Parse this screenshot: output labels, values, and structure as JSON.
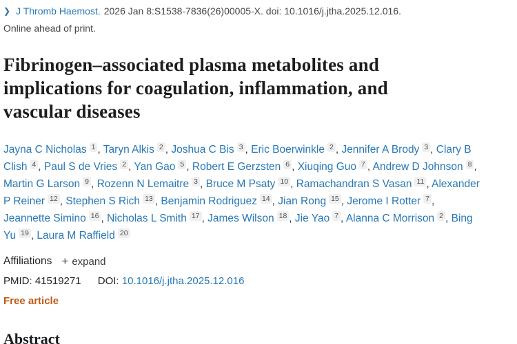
{
  "header": {
    "chevron_icon": "❯",
    "journal_link": "J Thromb Haemost.",
    "citation": "2026 Jan 8:S1538-7836(26)00005-X. doi: 10.1016/j.jtha.2025.12.016.",
    "online_ahead": "Online ahead of print."
  },
  "article": {
    "title": "Fibrinogen–associated plasma metabolites and implications for coagulation, inflammation, and vascular diseases"
  },
  "authors": [
    {
      "name": "Jayna C Nicholas",
      "sup": "1"
    },
    {
      "name": "Taryn Alkis",
      "sup": "2"
    },
    {
      "name": "Joshua C Bis",
      "sup": "3"
    },
    {
      "name": "Eric Boerwinkle",
      "sup": "2"
    },
    {
      "name": "Jennifer A Brody",
      "sup": "3"
    },
    {
      "name": "Clary B Clish",
      "sup": "4"
    },
    {
      "name": "Paul S de Vries",
      "sup": "2"
    },
    {
      "name": "Yan Gao",
      "sup": "5"
    },
    {
      "name": "Robert E Gerzsten",
      "sup": "6"
    },
    {
      "name": "Xiuqing Guo",
      "sup": "7"
    },
    {
      "name": "Andrew D Johnson",
      "sup": "8"
    },
    {
      "name": "Martin G Larson",
      "sup": "9"
    },
    {
      "name": "Rozenn N Lemaitre",
      "sup": "3"
    },
    {
      "name": "Bruce M Psaty",
      "sup": "10"
    },
    {
      "name": "Ramachandran S Vasan",
      "sup": "11"
    },
    {
      "name": "Alexander P Reiner",
      "sup": "12"
    },
    {
      "name": "Stephen S Rich",
      "sup": "13"
    },
    {
      "name": "Benjamin Rodriguez",
      "sup": "14"
    },
    {
      "name": "Jian Rong",
      "sup": "15"
    },
    {
      "name": "Jerome I Rotter",
      "sup": "7"
    },
    {
      "name": "Jeannette Simino",
      "sup": "16"
    },
    {
      "name": "Nicholas L Smith",
      "sup": "17"
    },
    {
      "name": "James Wilson",
      "sup": "18"
    },
    {
      "name": "Jie Yao",
      "sup": "7"
    },
    {
      "name": "Alanna C Morrison",
      "sup": "2"
    },
    {
      "name": "Bing Yu",
      "sup": "19"
    },
    {
      "name": "Laura M Raffield",
      "sup": "20"
    }
  ],
  "affiliations": {
    "label": "Affiliations",
    "plus_icon": "+",
    "expand_label": "expand"
  },
  "identifiers": {
    "pmid_label": "PMID:",
    "pmid": "41519271",
    "doi_label": "DOI:",
    "doi": "10.1016/j.jtha.2025.12.016"
  },
  "free_article_label": "Free article",
  "abstract": {
    "heading": "Abstract"
  },
  "colors": {
    "link_blue": "#2878b5",
    "dark_text": "#1b1d1f",
    "gray_text": "#424548",
    "free_article_orange": "#bf5b16",
    "badge_background": "#efefef"
  }
}
